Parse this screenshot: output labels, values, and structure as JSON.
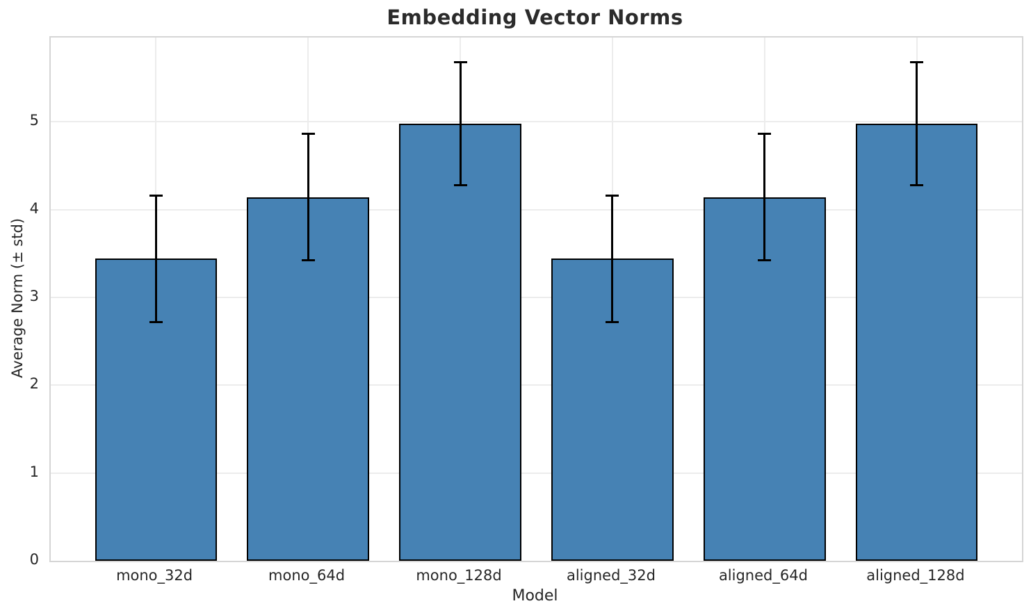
{
  "chart_data": {
    "type": "bar",
    "title": "Embedding Vector Norms",
    "xlabel": "Model",
    "ylabel": "Average Norm (± std)",
    "categories": [
      "mono_32d",
      "mono_64d",
      "mono_128d",
      "aligned_32d",
      "aligned_64d",
      "aligned_128d"
    ],
    "values": [
      3.44,
      4.14,
      4.98,
      3.44,
      4.14,
      4.98
    ],
    "errors": [
      0.72,
      0.72,
      0.7,
      0.72,
      0.72,
      0.7
    ],
    "yticks": [
      0,
      1,
      2,
      3,
      4,
      5
    ],
    "ylim": [
      0,
      5.96
    ],
    "bar_color": "#4682b4",
    "bar_edge_color": "#000000",
    "error_color": "#000000",
    "grid": true,
    "grid_color": "#ececec",
    "spine_color": "#d5d5d5",
    "legend": "none"
  }
}
